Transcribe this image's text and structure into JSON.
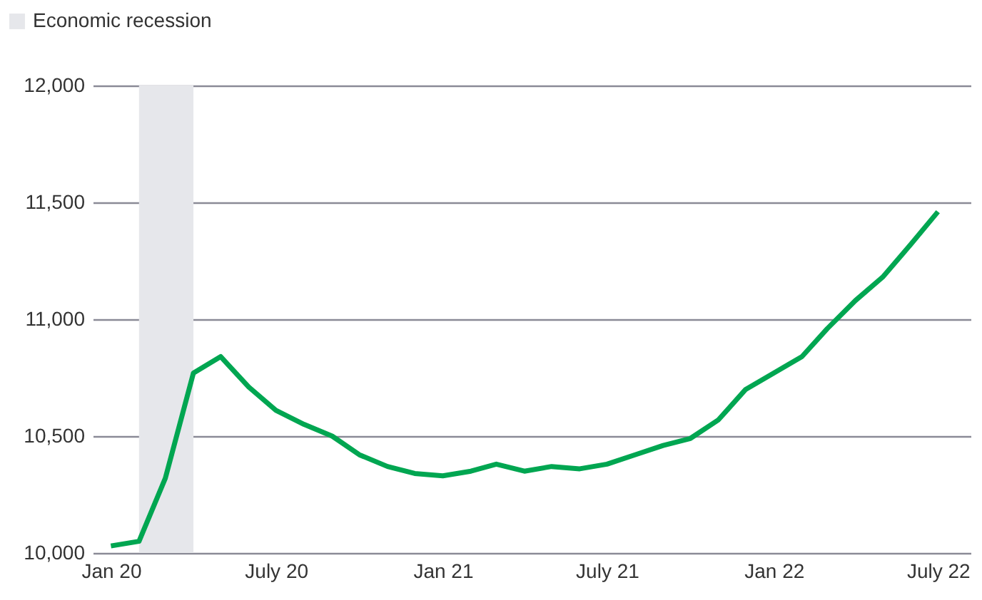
{
  "chart_data": {
    "type": "line",
    "x": [
      "2020-01",
      "2020-02",
      "2020-03",
      "2020-04",
      "2020-05",
      "2020-06",
      "2020-07",
      "2020-08",
      "2020-09",
      "2020-10",
      "2020-11",
      "2020-12",
      "2021-01",
      "2021-02",
      "2021-03",
      "2021-04",
      "2021-05",
      "2021-06",
      "2021-07",
      "2021-08",
      "2021-09",
      "2021-10",
      "2021-11",
      "2021-12",
      "2022-01",
      "2022-02",
      "2022-03",
      "2022-04",
      "2022-05",
      "2022-06",
      "2022-07"
    ],
    "series": [
      {
        "color": "#00a651",
        "values": [
          10030,
          10050,
          10320,
          10770,
          10840,
          10710,
          10610,
          10550,
          10500,
          10420,
          10370,
          10340,
          10330,
          10350,
          10380,
          10350,
          10370,
          10360,
          10380,
          10420,
          10460,
          10490,
          10570,
          10700,
          10770,
          10840,
          10960,
          11080,
          11180,
          11320,
          11460
        ]
      }
    ],
    "xlim": [
      "2019-12-12",
      "2022-08-06"
    ],
    "xticks": [
      {
        "value": "2020-01",
        "label": "Jan 20"
      },
      {
        "value": "2020-07",
        "label": "July 20"
      },
      {
        "value": "2021-01",
        "label": "Jan 21"
      },
      {
        "value": "2021-07",
        "label": "July 21"
      },
      {
        "value": "2022-01",
        "label": "Jan 22"
      },
      {
        "value": "2022-07",
        "label": "July 22"
      }
    ],
    "ylim": [
      10000,
      12000
    ],
    "yticks": [
      {
        "value": 10000,
        "label": "10,000"
      },
      {
        "value": 10500,
        "label": "10,500"
      },
      {
        "value": 11000,
        "label": "11,000"
      },
      {
        "value": 11500,
        "label": "11,500"
      },
      {
        "value": 12000,
        "label": "12,000"
      }
    ],
    "bands": [
      {
        "axis": "x",
        "from": "2020-02",
        "to": "2020-04",
        "label": "Economic recession",
        "color": "#e6e7eb"
      }
    ],
    "grid": "y",
    "legend": "top left",
    "marker": "none",
    "line_style": "solid"
  }
}
